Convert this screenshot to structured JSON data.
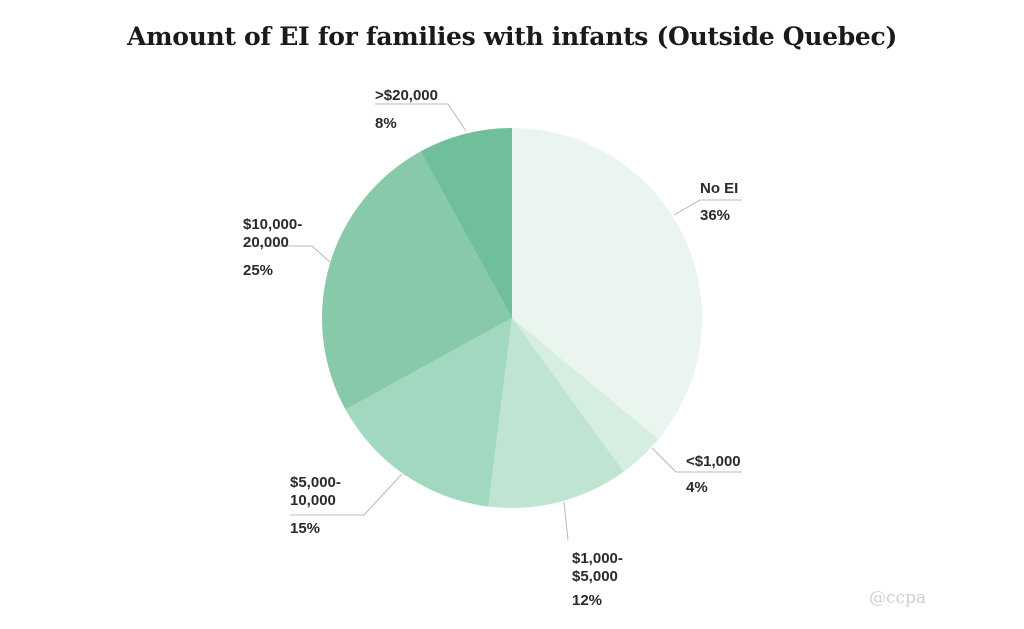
{
  "chart_data": {
    "type": "pie",
    "title": "Amount of EI for families with infants (Outside Quebec)",
    "slices": [
      {
        "label": "No EI",
        "label_lines": [
          "No EI"
        ],
        "percent_label": "36%",
        "value": 36,
        "color": "#e9f5ee"
      },
      {
        "label": "<$1,000",
        "label_lines": [
          "<$1,000"
        ],
        "percent_label": "4%",
        "value": 4,
        "color": "#d6eee0"
      },
      {
        "label": "$1,000-$5,000",
        "label_lines": [
          "$1,000-",
          "$5,000"
        ],
        "percent_label": "12%",
        "value": 12,
        "color": "#c0e4d2"
      },
      {
        "label": "$5,000-10,000",
        "label_lines": [
          "$5,000-",
          "10,000"
        ],
        "percent_label": "15%",
        "value": 15,
        "color": "#a2d8bf"
      },
      {
        "label": "$10,000-20,000",
        "label_lines": [
          "$10,000-",
          "20,000"
        ],
        "percent_label": "25%",
        "value": 25,
        "color": "#88c9aa"
      },
      {
        "label": ">$20,000",
        "label_lines": [
          ">$20,000"
        ],
        "percent_label": "8%",
        "value": 8,
        "color": "#6fbf9b"
      }
    ]
  },
  "watermark": "@ccpa"
}
